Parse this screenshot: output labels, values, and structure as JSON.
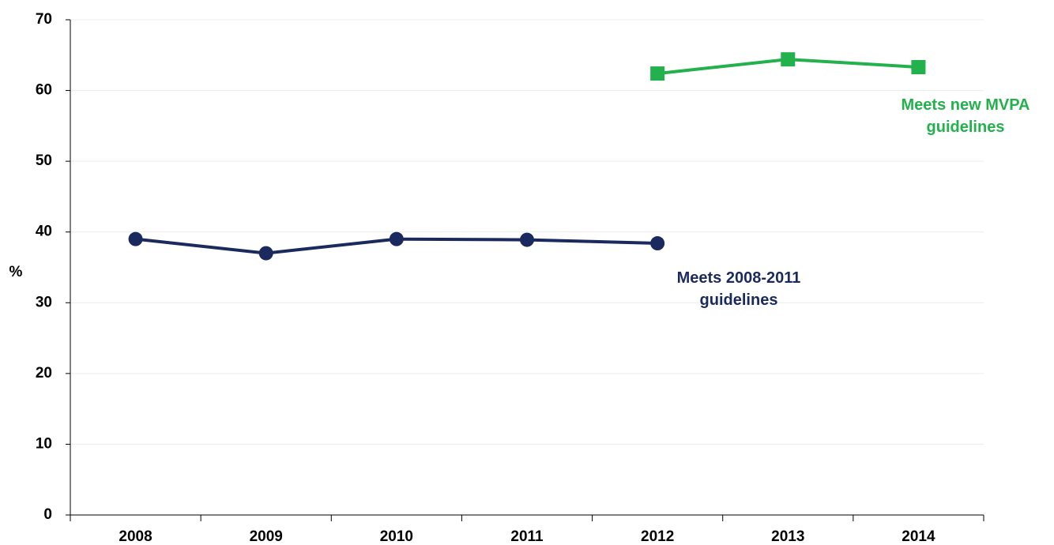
{
  "chart_data": {
    "type": "line",
    "ylabel": "%",
    "categories": [
      "2008",
      "2009",
      "2010",
      "2011",
      "2012",
      "2013",
      "2014"
    ],
    "series": [
      {
        "name": "Meets 2008-2011 guidelines",
        "color": "#1b2a5e",
        "marker": "circle",
        "values": [
          39,
          37,
          39,
          38.9,
          38.4,
          null,
          null
        ]
      },
      {
        "name": "Meets new MVPA guidelines",
        "color": "#22b14c",
        "marker": "square",
        "values": [
          null,
          null,
          null,
          null,
          62.4,
          64.4,
          63.3
        ]
      }
    ],
    "ylim": [
      0,
      70
    ],
    "yticks": [
      0,
      10,
      20,
      30,
      40,
      50,
      60,
      70
    ],
    "grid": true
  }
}
